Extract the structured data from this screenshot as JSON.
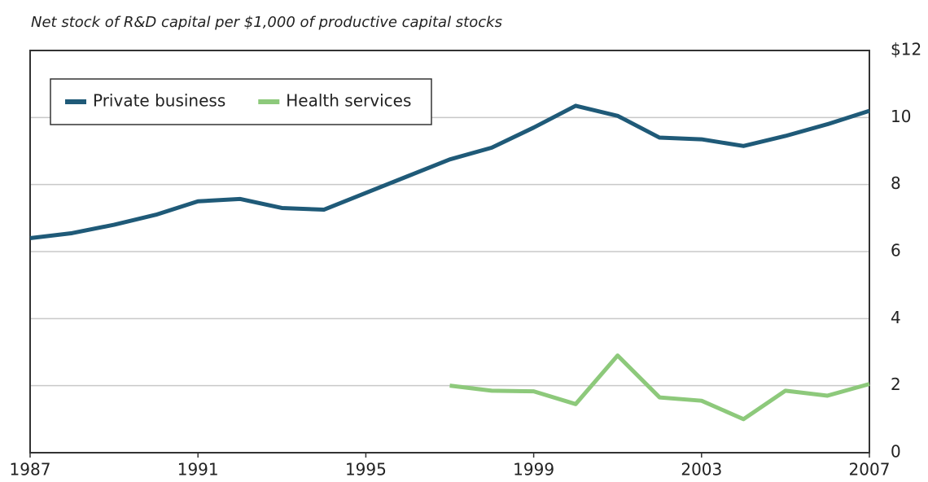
{
  "chart_data": {
    "type": "line",
    "title": "Net stock of R&D capital per $1,000 of productive capital stocks",
    "x": [
      1987,
      1988,
      1989,
      1990,
      1991,
      1992,
      1993,
      1994,
      1995,
      1996,
      1997,
      1998,
      1999,
      2000,
      2001,
      2002,
      2003,
      2004,
      2005,
      2006,
      2007
    ],
    "series": [
      {
        "name": "Private business",
        "color": "#1f5a78",
        "values": [
          6.4,
          6.55,
          6.8,
          7.1,
          7.5,
          7.57,
          7.3,
          7.25,
          7.75,
          8.25,
          8.75,
          9.1,
          9.7,
          10.35,
          10.05,
          9.4,
          9.35,
          9.15,
          9.45,
          9.8,
          10.2
        ]
      },
      {
        "name": "Health services",
        "color": "#8dc97b",
        "values": [
          null,
          null,
          null,
          null,
          null,
          null,
          null,
          null,
          null,
          null,
          2.0,
          1.85,
          1.83,
          1.45,
          2.9,
          1.65,
          1.55,
          1.0,
          1.85,
          1.7,
          2.05
        ]
      }
    ],
    "xlim": [
      1987,
      2007
    ],
    "xticks": [
      1987,
      1991,
      1995,
      1999,
      2003,
      2007
    ],
    "ylim": [
      0,
      12
    ],
    "yticks": [
      0,
      2,
      4,
      6,
      8,
      10,
      {
        "value": 12,
        "label": "$12"
      }
    ],
    "grid": true,
    "legend": "top-left"
  }
}
